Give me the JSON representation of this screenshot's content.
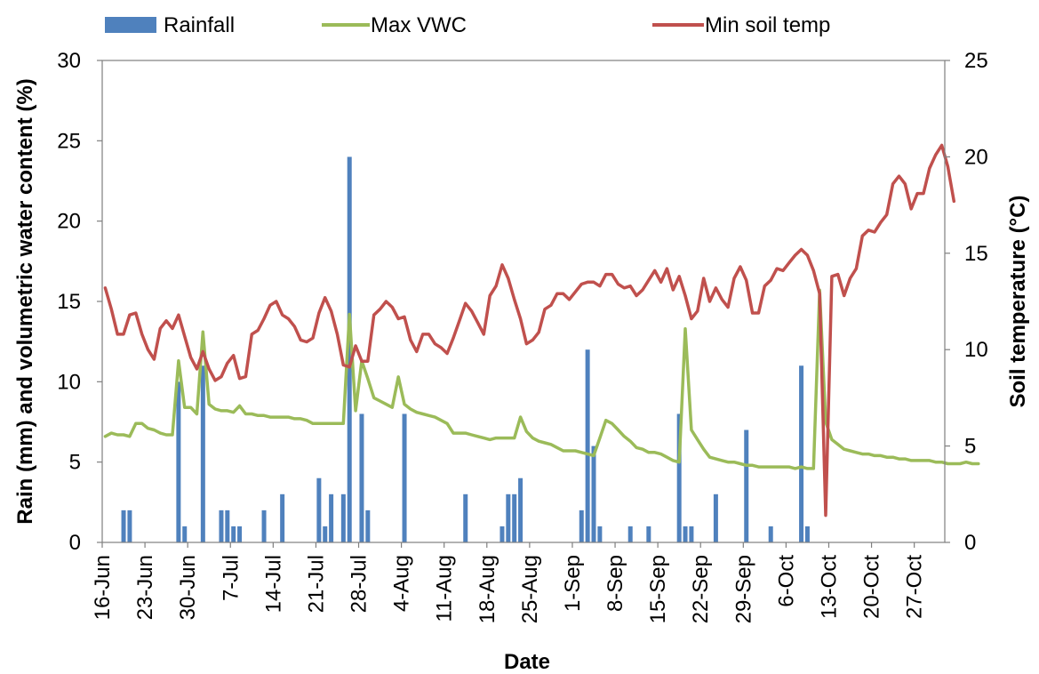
{
  "chart_data": {
    "type": "bar+line",
    "x_start_date": "16-Jun",
    "x_end_date": "1-Nov",
    "xlabel": "Date",
    "ylabel_left": "Rain (mm) and volumetric water content (%)",
    "ylabel_right": "Soil temperature (°C)",
    "ylim_left": [
      0,
      30
    ],
    "ylim_right": [
      0,
      25
    ],
    "yticks_left": [
      "0",
      "5",
      "10",
      "15",
      "20",
      "25",
      "30"
    ],
    "yticks_right": [
      "0",
      "5",
      "10",
      "15",
      "20",
      "25"
    ],
    "xticks": [
      "16-Jun",
      "23-Jun",
      "30-Jun",
      "7-Jul",
      "14-Jul",
      "21-Jul",
      "28-Jul",
      "4-Aug",
      "11-Aug",
      "18-Aug",
      "25-Aug",
      "1-Sep",
      "8-Sep",
      "15-Sep",
      "22-Sep",
      "29-Sep",
      "6-Oct",
      "13-Oct",
      "20-Oct",
      "27-Oct"
    ],
    "grid": false,
    "legend_position": "top",
    "colors": {
      "rainfall": "#4f81bd",
      "vwc": "#9bbb59",
      "temp": "#c0504d"
    },
    "series": [
      {
        "name": "Rainfall",
        "type": "bar",
        "axis": "left",
        "points": [
          [
            "19-Jun",
            2
          ],
          [
            "20-Jun",
            2
          ],
          [
            "28-Jun",
            10
          ],
          [
            "29-Jun",
            1
          ],
          [
            "2-Jul",
            11
          ],
          [
            "5-Jul",
            2
          ],
          [
            "6-Jul",
            2
          ],
          [
            "7-Jul",
            1
          ],
          [
            "8-Jul",
            1
          ],
          [
            "12-Jul",
            2
          ],
          [
            "15-Jul",
            3
          ],
          [
            "21-Jul",
            4
          ],
          [
            "22-Jul",
            1
          ],
          [
            "23-Jul",
            3
          ],
          [
            "25-Jul",
            3
          ],
          [
            "26-Jul",
            24
          ],
          [
            "28-Jul",
            8
          ],
          [
            "29-Jul",
            2
          ],
          [
            "4-Aug",
            8
          ],
          [
            "14-Aug",
            3
          ],
          [
            "20-Aug",
            1
          ],
          [
            "21-Aug",
            3
          ],
          [
            "22-Aug",
            3
          ],
          [
            "23-Aug",
            4
          ],
          [
            "2-Sep",
            2
          ],
          [
            "3-Sep",
            12
          ],
          [
            "4-Sep",
            6
          ],
          [
            "5-Sep",
            1
          ],
          [
            "10-Sep",
            1
          ],
          [
            "13-Sep",
            1
          ],
          [
            "18-Sep",
            8
          ],
          [
            "19-Sep",
            1
          ],
          [
            "20-Sep",
            1
          ],
          [
            "24-Sep",
            3
          ],
          [
            "29-Sep",
            7
          ],
          [
            "3-Oct",
            1
          ],
          [
            "8-Oct",
            11
          ],
          [
            "9-Oct",
            1
          ]
        ]
      },
      {
        "name": "Max VWC",
        "type": "line",
        "axis": "left",
        "values": [
          6.6,
          6.8,
          6.7,
          6.7,
          6.6,
          7.4,
          7.4,
          7.1,
          7.0,
          6.8,
          6.7,
          6.7,
          11.3,
          8.4,
          8.4,
          8.0,
          13.1,
          8.6,
          8.3,
          8.2,
          8.2,
          8.1,
          8.5,
          8.0,
          8.0,
          7.9,
          7.9,
          7.8,
          7.8,
          7.8,
          7.8,
          7.7,
          7.7,
          7.6,
          7.4,
          7.4,
          7.4,
          7.4,
          7.4,
          7.4,
          14.2,
          8.2,
          11.3,
          10.2,
          9.0,
          8.8,
          8.6,
          8.4,
          10.3,
          8.6,
          8.3,
          8.1,
          8.0,
          7.9,
          7.8,
          7.6,
          7.4,
          6.8,
          6.8,
          6.8,
          6.7,
          6.6,
          6.5,
          6.4,
          6.5,
          6.5,
          6.5,
          6.5,
          7.8,
          6.9,
          6.5,
          6.3,
          6.2,
          6.1,
          5.9,
          5.7,
          5.7,
          5.7,
          5.6,
          5.5,
          5.4,
          6.5,
          7.6,
          7.4,
          7.0,
          6.6,
          6.3,
          5.9,
          5.8,
          5.6,
          5.6,
          5.5,
          5.3,
          5.1,
          5.0,
          13.3,
          7.0,
          6.4,
          5.8,
          5.3,
          5.2,
          5.1,
          5.0,
          5.0,
          4.9,
          4.8,
          4.8,
          4.7,
          4.7,
          4.7,
          4.7,
          4.7,
          4.7,
          4.6,
          4.7,
          4.6,
          4.6,
          15.7,
          7.5,
          6.4,
          6.1,
          5.8,
          5.7,
          5.6,
          5.5,
          5.5,
          5.4,
          5.4,
          5.3,
          5.3,
          5.2,
          5.2,
          5.1,
          5.1,
          5.1,
          5.1,
          5.0,
          5.0,
          4.9,
          4.9,
          4.9,
          5.0,
          4.9,
          4.9
        ]
      },
      {
        "name": "Min soil temp",
        "type": "line",
        "axis": "right",
        "values": [
          13.2,
          12.1,
          10.8,
          10.8,
          11.8,
          11.9,
          10.8,
          10.0,
          9.5,
          11.1,
          11.5,
          11.1,
          11.8,
          10.7,
          9.6,
          9.0,
          9.9,
          9.0,
          8.4,
          8.6,
          9.3,
          9.7,
          8.5,
          8.6,
          10.8,
          11.0,
          11.6,
          12.3,
          12.5,
          11.8,
          11.6,
          11.2,
          10.5,
          10.4,
          10.6,
          11.9,
          12.7,
          12.0,
          10.8,
          9.2,
          9.1,
          10.2,
          9.4,
          9.4,
          11.8,
          12.1,
          12.5,
          12.2,
          11.6,
          11.7,
          10.5,
          9.9,
          10.8,
          10.8,
          10.3,
          10.1,
          9.8,
          10.6,
          11.5,
          12.4,
          12.0,
          11.4,
          10.8,
          12.8,
          13.3,
          14.4,
          13.7,
          12.6,
          11.6,
          10.3,
          10.5,
          10.9,
          12.1,
          12.3,
          12.9,
          12.9,
          12.6,
          13.0,
          13.4,
          13.5,
          13.5,
          13.3,
          13.9,
          13.9,
          13.4,
          13.2,
          13.3,
          12.8,
          13.1,
          13.6,
          14.1,
          13.5,
          14.2,
          13.1,
          13.8,
          12.8,
          11.6,
          12.0,
          13.7,
          12.5,
          13.2,
          12.6,
          12.2,
          13.7,
          14.3,
          13.6,
          11.9,
          11.9,
          13.3,
          13.6,
          14.2,
          14.1,
          14.5,
          14.9,
          15.2,
          14.9,
          14.1,
          12.9,
          1.4,
          13.8,
          13.9,
          12.8,
          13.7,
          14.2,
          15.9,
          16.2,
          16.1,
          16.6,
          17.0,
          18.6,
          19.0,
          18.6,
          17.3,
          18.1,
          18.1,
          19.4,
          20.1,
          20.6,
          19.5,
          17.7
        ]
      }
    ]
  }
}
